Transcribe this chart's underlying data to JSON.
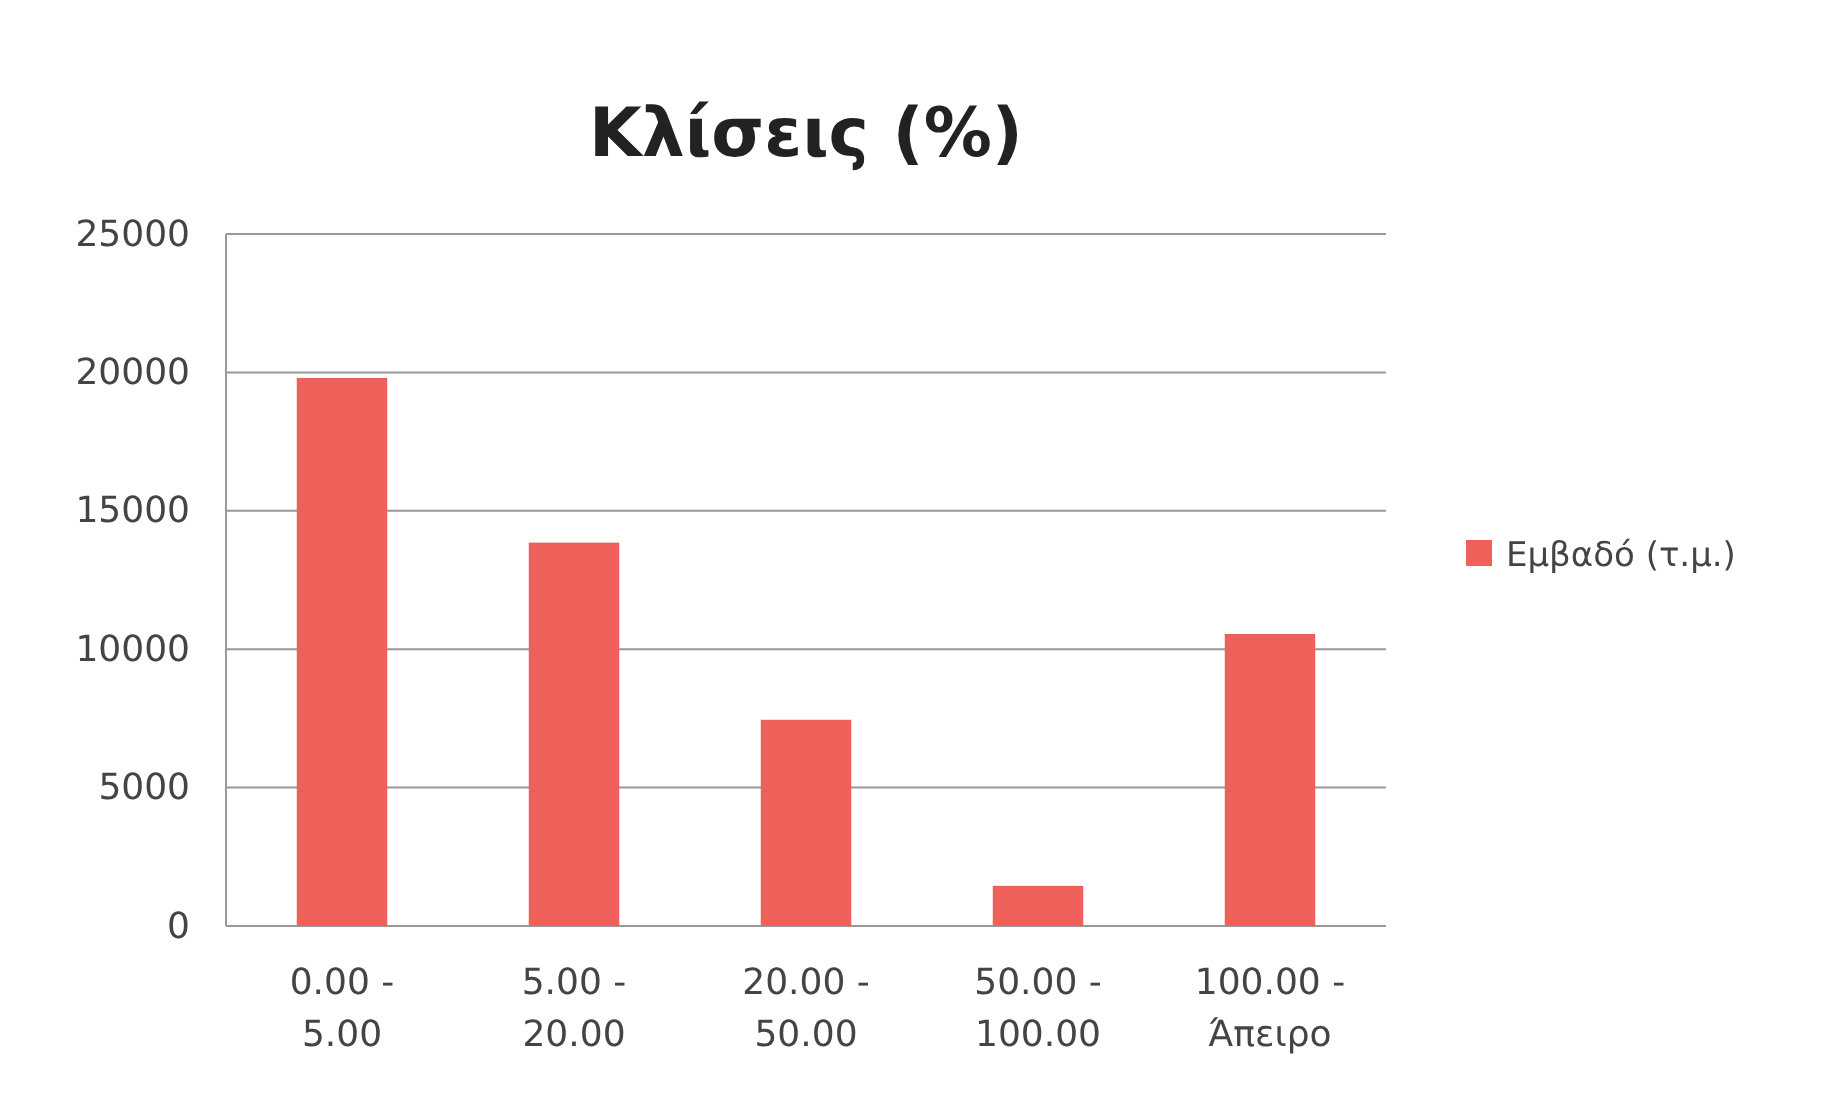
{
  "chart_data": {
    "type": "bar",
    "title": "Κλίσεις (%)",
    "categories": [
      "0.00 -\n5.00",
      "5.00 -\n20.00",
      "20.00 -\n50.00",
      "50.00 -\n100.00",
      "100.00 -\nΆπειρο"
    ],
    "series": [
      {
        "name": "Εμβαδό (τ.μ.)",
        "color": "#f0605a",
        "values": [
          19800,
          13850,
          7450,
          1450,
          10550
        ]
      }
    ],
    "ylim": [
      0,
      25000
    ],
    "yticks": [
      0,
      5000,
      10000,
      15000,
      20000,
      25000
    ],
    "grid": "y",
    "legend": "right"
  }
}
